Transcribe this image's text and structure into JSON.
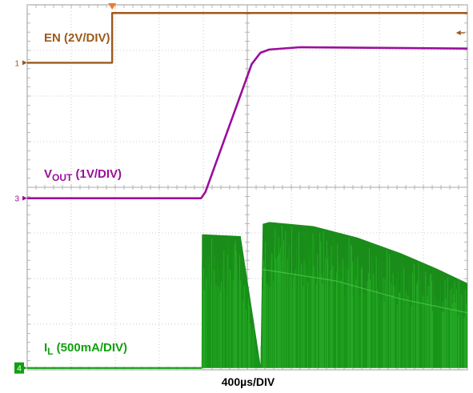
{
  "chart_data": {
    "type": "line",
    "x_label": "400µs/DIV",
    "grid": true,
    "grid_divisions": {
      "x": 10,
      "y": 8
    },
    "x_range_div": [
      0,
      10
    ],
    "y_range_div": [
      0,
      8
    ],
    "series": [
      {
        "name": "EN",
        "label": "EN (2V/DIV)",
        "color": "#9c5a1c",
        "marker": "1",
        "ground_div": 6.73,
        "points": [
          [
            0,
            6.73
          ],
          [
            1.93,
            6.73
          ],
          [
            1.93,
            7.82
          ],
          [
            10,
            7.82
          ]
        ]
      },
      {
        "name": "VOUT",
        "label_main": "V",
        "label_sub": "OUT",
        "label_rest": " (1V/DIV)",
        "color": "#9b0e9b",
        "marker": "3",
        "ground_div": 3.76,
        "points": [
          [
            0,
            3.76
          ],
          [
            3.95,
            3.76
          ],
          [
            4.05,
            3.9
          ],
          [
            5.1,
            6.7
          ],
          [
            5.3,
            6.95
          ],
          [
            5.5,
            7.02
          ],
          [
            6.2,
            7.07
          ],
          [
            10,
            7.04
          ]
        ]
      },
      {
        "name": "IL",
        "label_main": "I",
        "label_sub": "L",
        "label_rest": " (500mA/DIV)",
        "color": "#11a011",
        "marker": "4",
        "ground_div": 0.04,
        "envelope": [
          [
            0,
            0.04
          ],
          [
            3.96,
            0.04
          ],
          [
            3.97,
            2.97
          ],
          [
            4.85,
            2.93
          ],
          [
            5.3,
            0.1
          ],
          [
            5.35,
            3.2
          ],
          [
            5.5,
            3.24
          ],
          [
            6.5,
            3.15
          ],
          [
            7.5,
            2.9
          ],
          [
            8.5,
            2.55
          ],
          [
            9.3,
            2.22
          ],
          [
            10,
            1.9
          ]
        ],
        "lower_envelope": [
          [
            3.97,
            0.04
          ],
          [
            10,
            0.04
          ]
        ]
      }
    ],
    "trigger_marker": {
      "x_div": 1.93,
      "color": "#f07a30"
    },
    "ref_arrow": {
      "x_div": 9.85,
      "y_div": 7.0,
      "color": "#9c5a1c"
    }
  }
}
